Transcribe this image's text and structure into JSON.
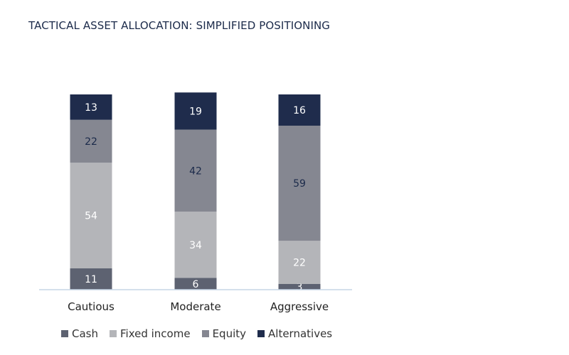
{
  "chart_data": {
    "type": "bar",
    "stacked": true,
    "title": "TACTICAL ASSET ALLOCATION: SIMPLIFIED POSITIONING",
    "categories": [
      "Cautious",
      "Moderate",
      "Aggressive"
    ],
    "series": [
      {
        "name": "Cash",
        "values": [
          11,
          6,
          3
        ],
        "color": "#5d6271",
        "label_color": "#ffffff"
      },
      {
        "name": "Fixed income",
        "values": [
          54,
          34,
          22
        ],
        "color": "#b4b5b9",
        "label_color": "#ffffff"
      },
      {
        "name": "Equity",
        "values": [
          22,
          42,
          59
        ],
        "color": "#858791",
        "label_color": "#1b2a4a"
      },
      {
        "name": "Alternatives",
        "values": [
          13,
          19,
          16
        ],
        "color": "#1f2c4c",
        "label_color": "#ffffff"
      }
    ],
    "ylim": [
      0,
      100
    ],
    "grid": false,
    "legend_position": "bottom-left",
    "axis_color": "#c5d5e6"
  }
}
